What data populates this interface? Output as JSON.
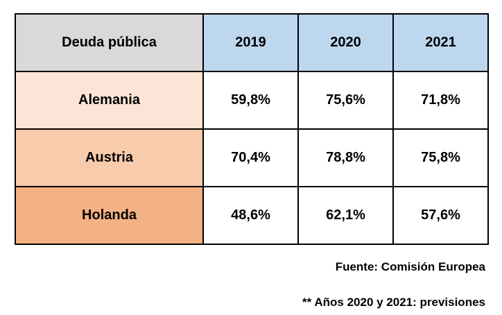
{
  "table": {
    "header": [
      "Deuda pública",
      "2019",
      "2020",
      "2021"
    ],
    "rows": [
      [
        "Alemania",
        "59,8%",
        "75,6%",
        "71,8%"
      ],
      [
        "Austria",
        "70,4%",
        "78,8%",
        "75,8%"
      ],
      [
        "Holanda",
        "48,6%",
        "62,1%",
        "57,6%"
      ]
    ]
  },
  "notes": [
    "Fuente: Comisión Europea",
    "** Años 2020 y 2021: previsiones"
  ]
}
